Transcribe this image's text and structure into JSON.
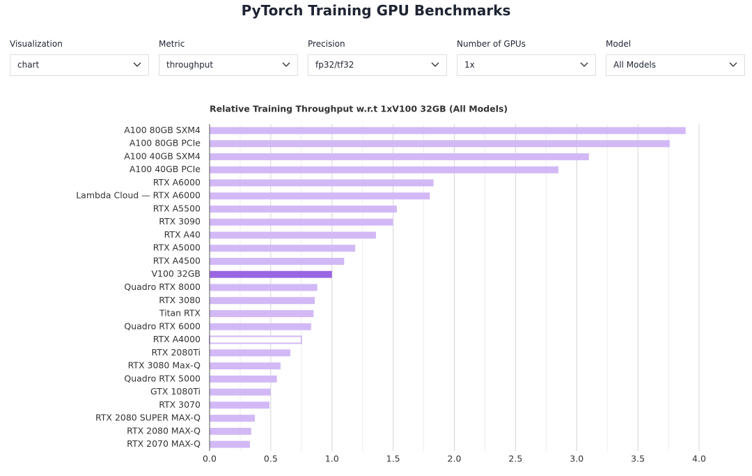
{
  "header": {
    "title": "PyTorch Training GPU Benchmarks"
  },
  "controls": [
    {
      "label": "Visualization",
      "value": "chart"
    },
    {
      "label": "Metric",
      "value": "throughput"
    },
    {
      "label": "Precision",
      "value": "fp32/tf32"
    },
    {
      "label": "Number of GPUs",
      "value": "1x"
    },
    {
      "label": "Model",
      "value": "All Models"
    }
  ],
  "chart_data": {
    "type": "hbar",
    "title": "Relative Training Throughput w.r.t 1xV100 32GB (All Models)",
    "categories": [
      "A100 80GB SXM4",
      "A100 80GB PCIe",
      "A100 40GB SXM4",
      "A100 40GB PCIe",
      "RTX A6000",
      "Lambda Cloud — RTX A6000",
      "RTX A5500",
      "RTX 3090",
      "RTX A40",
      "RTX A5000",
      "RTX A4500",
      "V100 32GB",
      "Quadro RTX 8000",
      "RTX 3080",
      "Titan RTX",
      "Quadro RTX 6000",
      "RTX A4000",
      "RTX 2080Ti",
      "RTX 3080 Max-Q",
      "Quadro RTX 5000",
      "GTX 1080Ti",
      "RTX 3070",
      "RTX 2080 SUPER MAX-Q",
      "RTX 2080 MAX-Q",
      "RTX 2070 MAX-Q"
    ],
    "values": [
      3.89,
      3.76,
      3.1,
      2.85,
      1.83,
      1.8,
      1.53,
      1.5,
      1.36,
      1.19,
      1.1,
      1.0,
      0.88,
      0.86,
      0.85,
      0.83,
      0.75,
      0.66,
      0.58,
      0.55,
      0.5,
      0.49,
      0.37,
      0.34,
      0.33
    ],
    "color": "#d2b9f6",
    "highlight": "V100 32GB",
    "highlight_color": "#9a66e2",
    "outlined": "RTX A4000",
    "xlim": [
      0,
      4
    ],
    "xticks": [
      {
        "value": 0,
        "label": "0.0"
      },
      0.5,
      {
        "value": 1,
        "label": "1.0"
      },
      1.5,
      {
        "value": 2,
        "label": "2.0"
      },
      2.5,
      {
        "value": 3,
        "label": "3.0"
      },
      3.5,
      {
        "value": 4,
        "label": "4.0"
      }
    ],
    "minor_xticks": [
      0.25,
      0.75,
      1.25,
      1.75,
      2.25,
      2.75,
      3.25,
      3.75
    ],
    "grid": true
  }
}
